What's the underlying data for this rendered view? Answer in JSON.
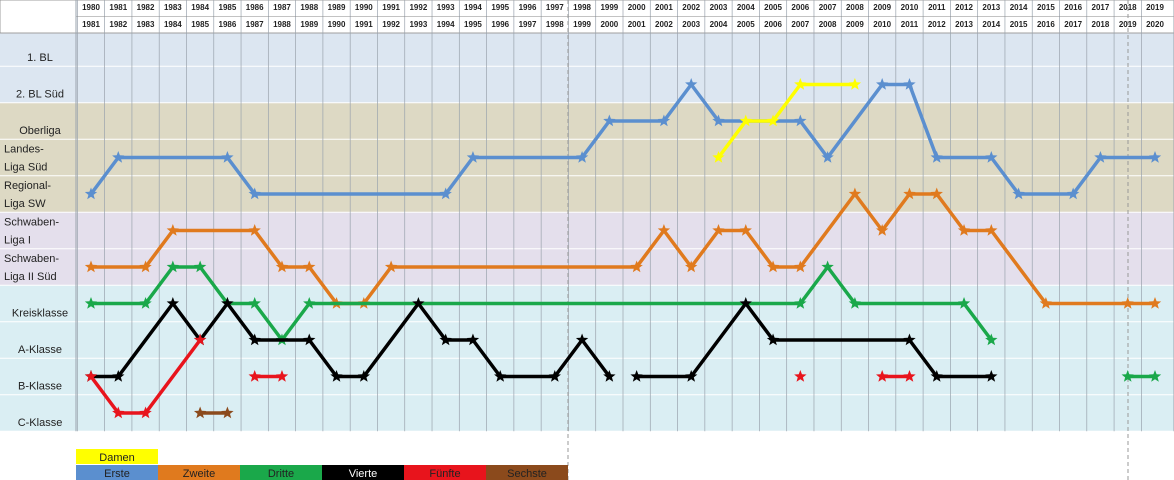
{
  "chart_data": {
    "type": "line",
    "y_categories": [
      [
        "1. BL"
      ],
      [
        "2. BL Süd"
      ],
      [
        "Oberliga"
      ],
      [
        "Landes-",
        "Liga Süd"
      ],
      [
        "Regional-",
        "Liga SW"
      ],
      [
        "Schwaben-",
        "Liga I"
      ],
      [
        "Schwaben-",
        "Liga II Süd"
      ],
      [
        "Kreisklasse"
      ],
      [
        "A-Klasse"
      ],
      [
        "B-Klasse"
      ],
      [
        "C-Klasse"
      ]
    ],
    "y_category_colors": [
      "#dce6f1",
      "#dce6f1",
      "#ddd9c4",
      "#ddd9c4",
      "#ddd9c4",
      "#e4dfec",
      "#e4dfec",
      "#daeef3",
      "#daeef3",
      "#daeef3",
      "#daeef3"
    ],
    "xlim": [
      1980,
      2019
    ],
    "xticks": [
      1980,
      1981,
      1982,
      1983,
      1984,
      1985,
      1986,
      1987,
      1988,
      1989,
      1990,
      1991,
      1992,
      1993,
      1994,
      1995,
      1996,
      1997,
      1998,
      1999,
      2000,
      2001,
      2002,
      2003,
      2004,
      2005,
      2006,
      2007,
      2008,
      2009,
      2010,
      2011,
      2012,
      2013,
      2014,
      2015,
      2016,
      2017,
      2018,
      2019
    ],
    "xticks_end": [
      1981,
      1982,
      1983,
      1984,
      1985,
      1986,
      1987,
      1988,
      1989,
      1990,
      1991,
      1992,
      1993,
      1994,
      1995,
      1996,
      1997,
      1998,
      1999,
      2000,
      2001,
      2002,
      2003,
      2004,
      2005,
      2006,
      2007,
      2008,
      2009,
      2010,
      2011,
      2012,
      2013,
      2014,
      2015,
      2016,
      2017,
      2018,
      2019,
      2020
    ],
    "series": [
      {
        "name": "Erste",
        "color": "#5b8fcf",
        "segments": [
          {
            "x": [
              1980,
              1981,
              1985,
              1986,
              1993,
              1994,
              1998,
              1999,
              2001,
              2002,
              2003,
              2006,
              2007,
              2009,
              2010,
              2011,
              2013,
              2014,
              2016,
              2017,
              2019
            ],
            "values": [
              4,
              3,
              3,
              4,
              4,
              3,
              3,
              2,
              2,
              1,
              2,
              2,
              3,
              1,
              1,
              3,
              3,
              4,
              4,
              3,
              3
            ]
          }
        ]
      },
      {
        "name": "Zweite",
        "color": "#e07a1e",
        "segments": [
          {
            "x": [
              1980,
              1982,
              1983,
              1986,
              1987,
              1988,
              1989,
              1990,
              1991,
              2000,
              2001,
              2002,
              2003,
              2004,
              2005,
              2006,
              2008,
              2009,
              2010,
              2011,
              2012,
              2013,
              2015,
              2018,
              2019
            ],
            "values": [
              6,
              6,
              5,
              5,
              6,
              6,
              7,
              7,
              6,
              6,
              5,
              6,
              5,
              5,
              6,
              6,
              4,
              5,
              4,
              4,
              5,
              5,
              7,
              7,
              7
            ]
          }
        ]
      },
      {
        "name": "Dritte",
        "color": "#1aa84a",
        "segments": [
          {
            "x": [
              1980,
              1982,
              1983,
              1984,
              1985,
              1986,
              1987,
              1988,
              2006,
              2007,
              2008,
              2012,
              2013
            ],
            "values": [
              7,
              7,
              6,
              6,
              7,
              7,
              8,
              7,
              7,
              6,
              7,
              7,
              8
            ]
          },
          {
            "x": [
              2018,
              2019
            ],
            "values": [
              9,
              9
            ]
          }
        ]
      },
      {
        "name": "Vierte",
        "color": "#000000",
        "segments": [
          {
            "x": [
              1980,
              1981,
              1983,
              1984,
              1985,
              1986,
              1988,
              1989,
              1990,
              1992,
              1993,
              1994,
              1995,
              1997,
              1998,
              1999
            ],
            "values": [
              9,
              9,
              7,
              8,
              7,
              8,
              8,
              9,
              9,
              7,
              8,
              8,
              9,
              9,
              8,
              9
            ]
          },
          {
            "x": [
              2000,
              2002,
              2004,
              2005,
              2010,
              2011,
              2013
            ],
            "values": [
              9,
              9,
              7,
              8,
              8,
              9,
              9
            ]
          }
        ]
      },
      {
        "name": "Fünfte",
        "color": "#e8141c",
        "segments": [
          {
            "x": [
              1980,
              1981,
              1982,
              1984
            ],
            "values": [
              9,
              10,
              10,
              8
            ]
          },
          {
            "x": [
              1986,
              1987
            ],
            "values": [
              9,
              9
            ]
          },
          {
            "x": [
              2006
            ],
            "values": [
              9
            ]
          },
          {
            "x": [
              2009,
              2010
            ],
            "values": [
              9,
              9
            ]
          }
        ]
      },
      {
        "name": "Sechste",
        "color": "#8b4a1c",
        "segments": [
          {
            "x": [
              1984,
              1985
            ],
            "values": [
              10,
              10
            ]
          }
        ]
      },
      {
        "name": "Damen",
        "color": "#ffff00",
        "segments": [
          {
            "x": [
              2003,
              2004,
              2005,
              2006,
              2008
            ],
            "values": [
              3,
              2,
              2,
              1,
              1
            ]
          }
        ]
      }
    ]
  }
}
